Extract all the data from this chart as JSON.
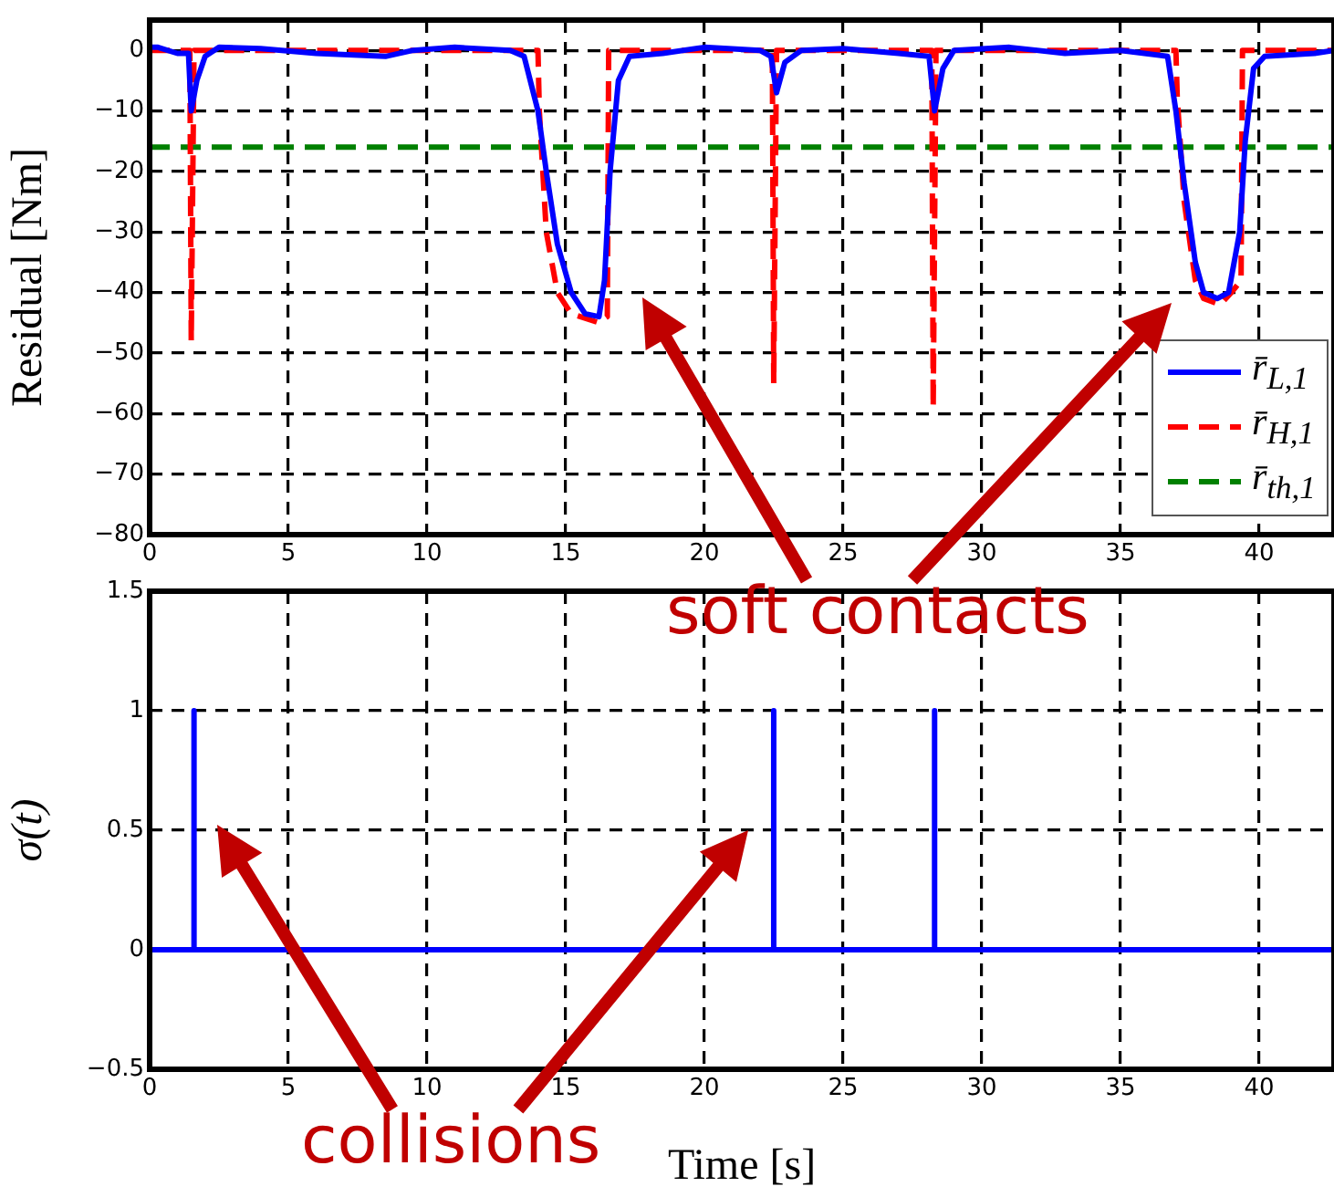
{
  "chart_data": [
    {
      "type": "line",
      "ylabel": "Residual [Nm]",
      "xlim": [
        0,
        42.7
      ],
      "xticks": [
        0,
        5,
        10,
        15,
        20,
        25,
        30,
        35,
        40
      ],
      "ylim": [
        -80,
        5
      ],
      "yticks": [
        -80,
        -70,
        -60,
        -50,
        -40,
        -30,
        -20,
        -10,
        0
      ],
      "grid": true,
      "legend": "bottom right",
      "annotations": [
        "soft contacts"
      ],
      "series": [
        {
          "name": "r̄$_{L,1}$",
          "color": "#0000ff",
          "line_style": "solid",
          "x": [
            0,
            0.3,
            1.0,
            1.4,
            1.5,
            1.7,
            2.0,
            2.5,
            4,
            6,
            8.5,
            9.5,
            11,
            13,
            13.5,
            14,
            14.3,
            14.7,
            15.2,
            15.7,
            16.2,
            16.4,
            16.6,
            16.9,
            17.3,
            18.5,
            20,
            22,
            22.4,
            22.6,
            22.9,
            23.5,
            25,
            27,
            28.1,
            28.3,
            28.6,
            29,
            31,
            33,
            35,
            36.7,
            37.0,
            37.3,
            37.7,
            38.0,
            38.5,
            38.9,
            39.3,
            39.5,
            39.8,
            40.2,
            42,
            42.7
          ],
          "values": [
            0.5,
            0.5,
            -0.5,
            -0.5,
            -10,
            -5,
            -1,
            0.5,
            0.3,
            -0.5,
            -1,
            0,
            0.5,
            0,
            -1,
            -10,
            -20,
            -32,
            -40,
            -43.5,
            -44,
            -38,
            -20,
            -5,
            -1,
            -0.5,
            0.5,
            0,
            -1,
            -7,
            -2,
            0,
            0.3,
            -0.5,
            -1,
            -10,
            -3,
            0,
            0.5,
            -0.5,
            0,
            -1,
            -10,
            -22,
            -35,
            -40,
            -41,
            -40,
            -30,
            -15,
            -3,
            -1,
            -0.5,
            0
          ]
        },
        {
          "name": "r̄$_{H,1}$",
          "color": "#ff0000",
          "line_style": "dashed",
          "x": [
            0,
            1.45,
            1.5,
            1.6,
            14,
            14.05,
            14.3,
            14.7,
            15.2,
            16.2,
            16.5,
            16.55,
            22.45,
            22.5,
            22.6,
            28.2,
            28.25,
            28.35,
            37,
            37.05,
            37.3,
            37.7,
            38,
            38.6,
            39.0,
            39.35,
            39.4,
            42.7
          ],
          "values": [
            0,
            0,
            -48,
            0,
            0,
            -10,
            -30,
            -40,
            -43.5,
            -45,
            -44,
            0,
            0,
            -55,
            0,
            0,
            -59,
            0,
            0,
            -8,
            -25,
            -38,
            -41,
            -42,
            -40,
            -38,
            0,
            0
          ]
        },
        {
          "name": "r̄$_{th,1}$",
          "color": "#008000",
          "line_style": "dashed",
          "x": [
            0,
            42.7
          ],
          "values": [
            -16,
            -16
          ]
        }
      ]
    },
    {
      "type": "line",
      "ylabel": "σ(t)",
      "xlabel": "Time [s]",
      "xlim": [
        0,
        42.7
      ],
      "xticks": [
        0,
        5,
        10,
        15,
        20,
        25,
        30,
        35,
        40
      ],
      "ylim": [
        -0.5,
        1.5
      ],
      "yticks": [
        -0.5,
        0,
        0.5,
        1,
        1.5
      ],
      "grid": true,
      "annotations": [
        "collisions"
      ],
      "series": [
        {
          "color": "#0000ff",
          "line_style": "solid",
          "x": [
            0,
            1.6,
            1.6,
            1.6,
            22.5,
            22.5,
            22.5,
            28.3,
            28.3,
            28.3,
            42.7
          ],
          "values": [
            0,
            0,
            1,
            0,
            0,
            1,
            0,
            0,
            1,
            0,
            0
          ]
        }
      ]
    }
  ]
}
